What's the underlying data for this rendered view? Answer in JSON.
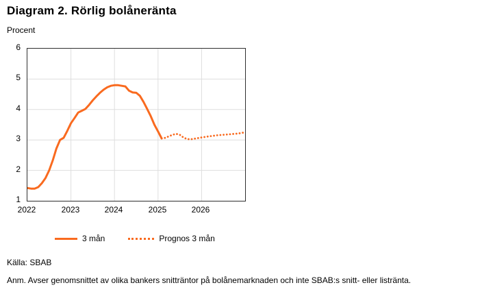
{
  "header": {
    "title": "Diagram 2. Rörlig bolåneränta",
    "unit_label": "Procent"
  },
  "footer": {
    "source": "Källa: SBAB",
    "note": "Anm. Avser genomsnittet av olika bankers snitträntor på bolånemarknaden och inte SBAB:s snitt- eller listränta."
  },
  "legend": {
    "item1": "3 mån",
    "item2": "Prognos 3 mån"
  },
  "colors": {
    "line": "#f96a1f",
    "grid": "#dedede",
    "frame": "#2d2d2d",
    "text": "#000000"
  },
  "chart_data": {
    "type": "line",
    "title": "Diagram 2. Rörlig bolåneränta",
    "ylabel": "Procent",
    "ylim": [
      1,
      6
    ],
    "yticks": [
      1,
      2,
      3,
      4,
      5,
      6
    ],
    "xticks": [
      "2022",
      "2023",
      "2024",
      "2025",
      "2026"
    ],
    "xtick_months": [
      0,
      12,
      24,
      36,
      48
    ],
    "months_total": 60,
    "grid": true,
    "legend_position": "bottom",
    "series": [
      {
        "name": "3 mån",
        "style": "solid",
        "start": "2022-01",
        "start_index": 0,
        "values": [
          1.42,
          1.4,
          1.4,
          1.45,
          1.58,
          1.75,
          2.0,
          2.33,
          2.72,
          3.0,
          3.07,
          3.3,
          3.55,
          3.72,
          3.9,
          3.96,
          4.02,
          4.15,
          4.3,
          4.43,
          4.55,
          4.65,
          4.73,
          4.78,
          4.8,
          4.8,
          4.78,
          4.76,
          4.62,
          4.56,
          4.55,
          4.45,
          4.25,
          4.02,
          3.78,
          3.5,
          3.28,
          3.05
        ]
      },
      {
        "name": "Prognos 3 mån",
        "style": "dotted",
        "start": "2025-02",
        "start_index": 37,
        "values": [
          3.05,
          3.07,
          3.12,
          3.17,
          3.2,
          3.17,
          3.08,
          3.03,
          3.02,
          3.04,
          3.06,
          3.08,
          3.1,
          3.12,
          3.13,
          3.15,
          3.16,
          3.17,
          3.18,
          3.19,
          3.2,
          3.21,
          3.23,
          3.25
        ]
      }
    ]
  }
}
